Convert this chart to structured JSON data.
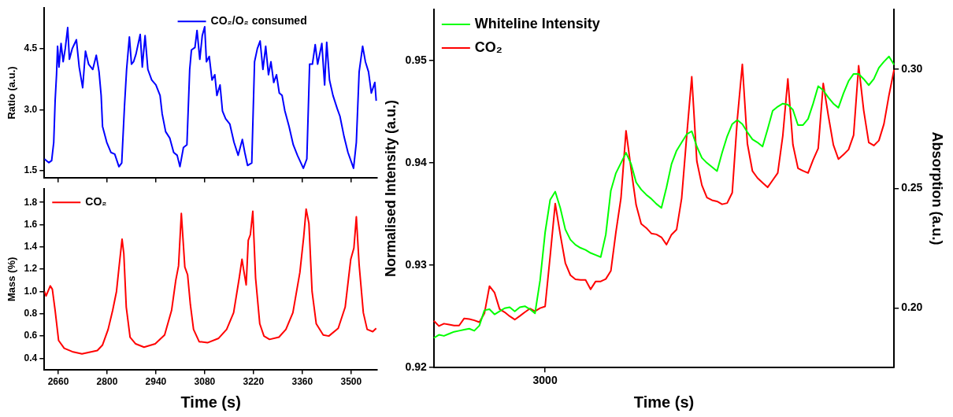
{
  "chart_data": [
    {
      "type": "line",
      "ylabel": "Ratio (a.u.)",
      "legend": "top",
      "grid": false,
      "tick_labels": "y",
      "xlim": [
        2620,
        3575
      ],
      "xticks": [
        2660,
        2800,
        2940,
        3080,
        3220,
        3360,
        3500
      ],
      "ylim": [
        1.33,
        5.5
      ],
      "yticks": [
        1.5,
        {
          "value": 3,
          "label": "3.0"
        },
        4.5
      ],
      "series": [
        {
          "name": "CO₂/O₂ consumed",
          "color": "#0000ff",
          "x": [
            2620,
            2633,
            2641,
            2647,
            2651,
            2655,
            2658,
            2662,
            2668,
            2674,
            2680,
            2687,
            2692,
            2700,
            2712,
            2720,
            2730,
            2738,
            2747,
            2759,
            2769,
            2777,
            2783,
            2787,
            2799,
            2811,
            2822,
            2834,
            2842,
            2850,
            2856,
            2864,
            2870,
            2876,
            2883,
            2895,
            2901,
            2909,
            2917,
            2928,
            2940,
            2952,
            2958,
            2968,
            2980,
            2991,
            3001,
            3009,
            3019,
            3029,
            3037,
            3042,
            3052,
            3058,
            3066,
            3073,
            3080,
            3085,
            3093,
            3101,
            3109,
            3115,
            3124,
            3131,
            3140,
            3152,
            3164,
            3176,
            3188,
            3195,
            3203,
            3215,
            3223,
            3231,
            3239,
            3247,
            3255,
            3263,
            3270,
            3278,
            3286,
            3294,
            3302,
            3310,
            3322,
            3334,
            3346,
            3363,
            3373,
            3381,
            3389,
            3397,
            3404,
            3416,
            3424,
            3430,
            3438,
            3448,
            3460,
            3468,
            3480,
            3491,
            3507,
            3515,
            3523,
            3533,
            3541,
            3550,
            3558,
            3568,
            3572
          ],
          "values": [
            1.79,
            1.7,
            1.75,
            2.2,
            3.22,
            3.86,
            4.56,
            4.05,
            4.63,
            4.18,
            4.5,
            5.02,
            4.24,
            4.5,
            4.72,
            4.05,
            3.54,
            4.44,
            4.12,
            3.99,
            4.34,
            3.93,
            3.35,
            2.59,
            2.2,
            1.95,
            1.91,
            1.6,
            1.69,
            3.1,
            3.99,
            4.79,
            4.12,
            4.18,
            4.37,
            4.85,
            4.05,
            4.82,
            3.99,
            3.73,
            3.61,
            3.35,
            2.9,
            2.46,
            2.3,
            1.95,
            1.88,
            1.6,
            2.07,
            2.14,
            3.99,
            4.47,
            4.53,
            4.95,
            4.24,
            4.82,
            5.04,
            4.18,
            4.31,
            3.73,
            3.86,
            3.35,
            3.61,
            2.97,
            2.78,
            2.65,
            2.2,
            1.88,
            2.27,
            1.95,
            1.63,
            1.69,
            4.18,
            4.5,
            4.69,
            3.99,
            4.56,
            3.86,
            4.18,
            3.67,
            3.86,
            3.41,
            3.35,
            2.97,
            2.59,
            2.14,
            1.88,
            1.56,
            1.79,
            4.12,
            4.12,
            4.6,
            4.12,
            4.63,
            3.61,
            4.66,
            3.73,
            3.35,
            3.03,
            2.84,
            2.33,
            1.95,
            1.56,
            2.2,
            3.93,
            4.56,
            4.18,
            3.93,
            3.41,
            3.67,
            3.22
          ]
        }
      ]
    },
    {
      "type": "line",
      "xlabel": "Time (s)",
      "ylabel": "Mass (%)",
      "legend": "top left",
      "grid": false,
      "xlim": [
        2620,
        3575
      ],
      "xticks": [
        2660,
        2800,
        2940,
        3080,
        3220,
        3360,
        3500
      ],
      "ylim": [
        0.3,
        1.92
      ],
      "yticks": [
        0.4,
        0.6,
        0.8,
        {
          "value": 1,
          "label": "1.0"
        },
        1.2,
        1.4,
        1.6,
        1.8
      ],
      "series": [
        {
          "name": "CO₂",
          "color": "#ff0000",
          "x": [
            2620,
            2625,
            2637,
            2643,
            2651,
            2661,
            2677,
            2700,
            2728,
            2772,
            2787,
            2803,
            2816,
            2827,
            2835,
            2843,
            2848,
            2855,
            2866,
            2882,
            2906,
            2938,
            2965,
            2985,
            2997,
            3005,
            3013,
            3023,
            3031,
            3039,
            3048,
            3064,
            3088,
            3120,
            3143,
            3163,
            3179,
            3187,
            3192,
            3199,
            3205,
            3211,
            3218,
            3226,
            3238,
            3250,
            3266,
            3293,
            3313,
            3333,
            3353,
            3364,
            3371,
            3379,
            3388,
            3400,
            3420,
            3436,
            3463,
            3483,
            3499,
            3508,
            3515,
            3523,
            3535,
            3546,
            3562,
            3572
          ],
          "values": [
            1.0,
            0.96,
            1.05,
            1.02,
            0.83,
            0.56,
            0.49,
            0.46,
            0.44,
            0.47,
            0.52,
            0.66,
            0.83,
            1.0,
            1.24,
            1.47,
            1.34,
            0.86,
            0.59,
            0.53,
            0.5,
            0.53,
            0.61,
            0.83,
            1.1,
            1.23,
            1.7,
            1.22,
            1.15,
            0.88,
            0.66,
            0.55,
            0.54,
            0.58,
            0.66,
            0.81,
            1.12,
            1.29,
            1.19,
            1.06,
            1.46,
            1.51,
            1.72,
            1.12,
            0.71,
            0.6,
            0.57,
            0.59,
            0.66,
            0.81,
            1.17,
            1.49,
            1.74,
            1.61,
            1.0,
            0.71,
            0.61,
            0.6,
            0.67,
            0.86,
            1.29,
            1.39,
            1.67,
            1.24,
            0.81,
            0.66,
            0.64,
            0.67
          ]
        }
      ]
    },
    {
      "type": "line",
      "xlabel": "Time (s)",
      "ylabel": "Normalised Intensity (a.u.)",
      "y2label": "Absorption (a.u.)",
      "legend": "top left",
      "grid": false,
      "categories": [
        null,
        null,
        null,
        null,
        null,
        null,
        null,
        null,
        null,
        null,
        null,
        null,
        null,
        null,
        null,
        null,
        null,
        null,
        null,
        null,
        null,
        null,
        "3000",
        null,
        null,
        null,
        null,
        null,
        null,
        null,
        null,
        null,
        null,
        null,
        null,
        null,
        null,
        null,
        null,
        null,
        null,
        null,
        null,
        null,
        null,
        null,
        null,
        null,
        null,
        null,
        null,
        null,
        null,
        null,
        null,
        null,
        null,
        null,
        null,
        null,
        null,
        null,
        null,
        null,
        null,
        null,
        null,
        null,
        null,
        null,
        null,
        null,
        null,
        null,
        null,
        null,
        null,
        null,
        null,
        null,
        null,
        null,
        null,
        null,
        null,
        null,
        null,
        null,
        null,
        null,
        null,
        null
      ],
      "ylim": [
        0.92,
        0.955
      ],
      "yticks": [
        0.92,
        0.93,
        0.94,
        0.95
      ],
      "y2lim": [
        0.175,
        0.325
      ],
      "y2ticks": [
        {
          "value": 0.2,
          "label": "0.20"
        },
        0.25,
        {
          "value": 0.3,
          "label": "0.30"
        }
      ],
      "series": [
        {
          "name": "Whiteline Intensity",
          "color": "#00ff00",
          "values": [
            0.9229,
            0.9232,
            0.9231,
            0.9233,
            0.9235,
            0.9236,
            0.9237,
            0.9238,
            0.9236,
            0.9241,
            0.9256,
            0.9257,
            0.9252,
            0.9255,
            0.9258,
            0.9259,
            0.9255,
            0.9259,
            0.926,
            0.9257,
            0.9253,
            0.9285,
            0.9332,
            0.9364,
            0.9372,
            0.9356,
            0.9335,
            0.9325,
            0.932,
            0.9317,
            0.9315,
            0.9312,
            0.931,
            0.9308,
            0.933,
            0.9373,
            0.939,
            0.94,
            0.941,
            0.9399,
            0.9381,
            0.9374,
            0.9369,
            0.9365,
            0.936,
            0.9356,
            0.9376,
            0.9399,
            0.9412,
            0.942,
            0.9428,
            0.9431,
            0.9416,
            0.9405,
            0.94,
            0.9396,
            0.9392,
            0.941,
            0.9426,
            0.9438,
            0.9442,
            0.9438,
            0.943,
            0.9423,
            0.942,
            0.9416,
            0.9433,
            0.9451,
            0.9455,
            0.9458,
            0.9457,
            0.9452,
            0.9437,
            0.9437,
            0.9443,
            0.9458,
            0.9475,
            0.9471,
            0.9464,
            0.9458,
            0.9454,
            0.9468,
            0.948,
            0.9487,
            0.9487,
            0.9482,
            0.9476,
            0.9482,
            0.9493,
            0.9499,
            0.9504,
            0.9496
          ]
        },
        {
          "name": "CO₂",
          "color": "#ff0000",
          "axis": "y2",
          "values": [
            0.1946,
            0.1924,
            0.1934,
            0.193,
            0.1926,
            0.1926,
            0.1956,
            0.1953,
            0.1948,
            0.194,
            0.1977,
            0.2091,
            0.2064,
            0.1995,
            0.1982,
            0.1965,
            0.1951,
            0.1966,
            0.1982,
            0.1997,
            0.1986,
            0.1999,
            0.2006,
            0.2217,
            0.2437,
            0.2307,
            0.2188,
            0.2137,
            0.212,
            0.2117,
            0.2117,
            0.2078,
            0.2111,
            0.2111,
            0.2121,
            0.2155,
            0.2317,
            0.246,
            0.2742,
            0.2582,
            0.2431,
            0.2352,
            0.2335,
            0.2312,
            0.2308,
            0.2296,
            0.2265,
            0.2307,
            0.2328,
            0.2459,
            0.272,
            0.2968,
            0.2615,
            0.2514,
            0.2462,
            0.2451,
            0.2446,
            0.2434,
            0.2439,
            0.2482,
            0.2789,
            0.302,
            0.2688,
            0.2573,
            0.2544,
            0.2524,
            0.2505,
            0.2535,
            0.2565,
            0.2721,
            0.2959,
            0.2684,
            0.2585,
            0.2574,
            0.2565,
            0.262,
            0.2668,
            0.294,
            0.2806,
            0.2683,
            0.2623,
            0.2642,
            0.2663,
            0.2723,
            0.3014,
            0.2827,
            0.2693,
            0.268,
            0.2701,
            0.277,
            0.2891,
            0.2997
          ]
        }
      ]
    }
  ]
}
